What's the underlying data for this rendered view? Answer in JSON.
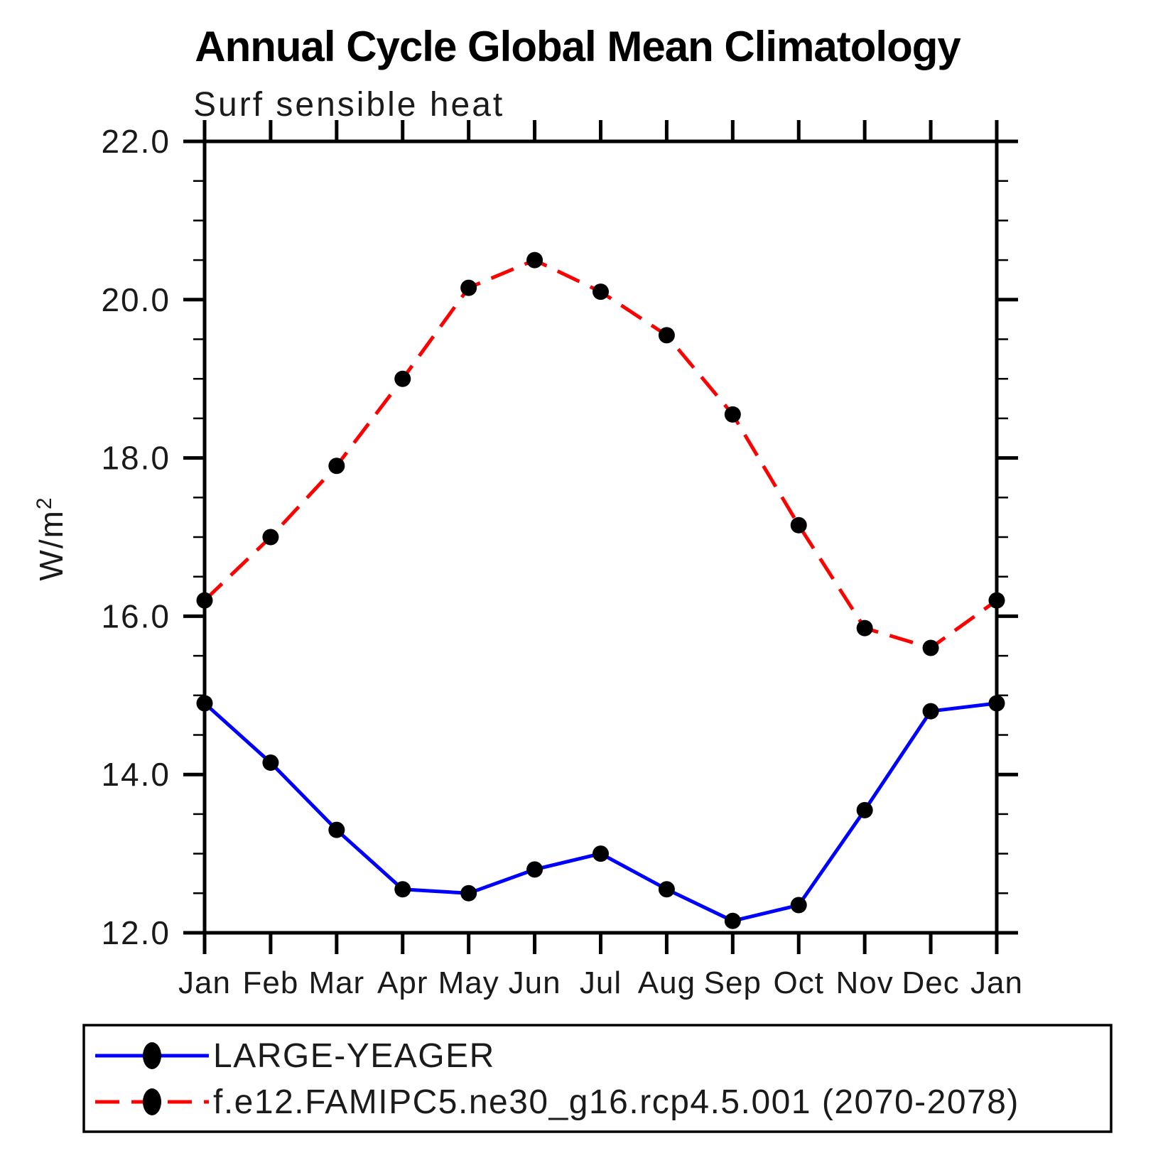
{
  "header": {
    "title": "Annual Cycle Global Mean Climatology",
    "subtitle": "Surf sensible heat"
  },
  "axes": {
    "y_label_base": "W/m",
    "y_label_sup": "2"
  },
  "chart_data": {
    "type": "line",
    "title": "Annual Cycle Global Mean Climatology",
    "subtitle": "Surf sensible heat",
    "ylabel": "W/m^2",
    "xlabel": "",
    "x_categories": [
      "Jan",
      "Feb",
      "Mar",
      "Apr",
      "May",
      "Jun",
      "Jul",
      "Aug",
      "Sep",
      "Oct",
      "Nov",
      "Dec",
      "Jan"
    ],
    "ylim": [
      12.0,
      22.0
    ],
    "y_major_tick_step": 2.0,
    "y_minor_tick_step": 0.5,
    "y_tick_labels": [
      "12.0",
      "14.0",
      "16.0",
      "18.0",
      "20.0",
      "22.0"
    ],
    "grid": false,
    "legend_position": "bottom-left-box",
    "axis_color": "#000000",
    "series": [
      {
        "name": "LARGE-YEAGER",
        "color": "#0000ff",
        "line_style": "solid",
        "marker": "filled-circle",
        "marker_color": "#000000",
        "values": [
          14.9,
          14.15,
          13.3,
          12.55,
          12.5,
          12.8,
          13.0,
          12.55,
          12.15,
          12.35,
          13.55,
          14.8,
          14.9
        ]
      },
      {
        "name": "f.e12.FAMIPC5.ne30_g16.rcp4.5.001 (2070-2078)",
        "color": "#ff0000",
        "line_style": "dashed",
        "marker": "filled-circle",
        "marker_color": "#000000",
        "values": [
          16.2,
          17.0,
          17.9,
          19.0,
          20.15,
          20.5,
          20.1,
          19.55,
          18.55,
          17.15,
          15.85,
          15.6,
          16.2
        ]
      }
    ]
  }
}
